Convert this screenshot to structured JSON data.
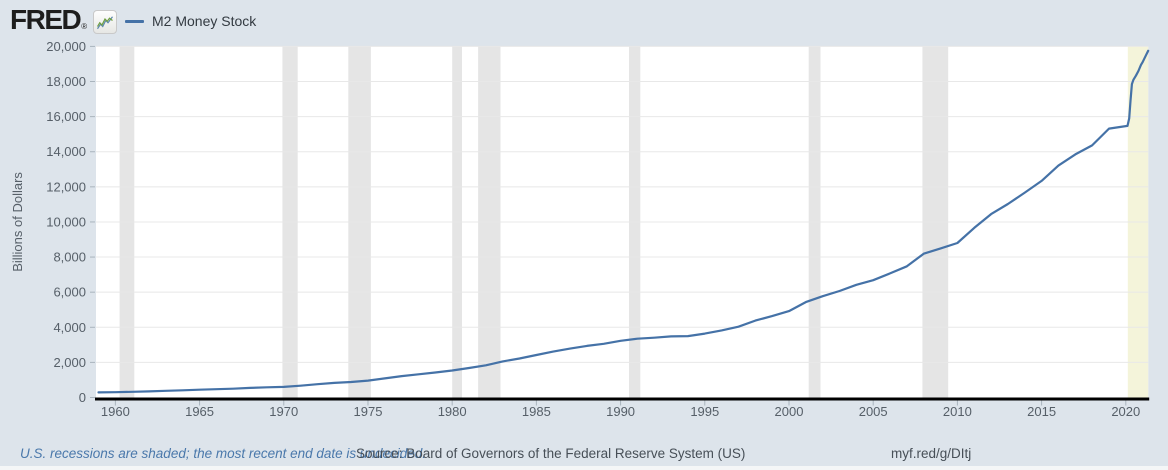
{
  "header": {
    "logo_text": "FRED",
    "registered_mark": "®",
    "legend": {
      "label": "M2 Money Stock"
    }
  },
  "footer": {
    "recession_note": "U.S. recessions are shaded; the most recent end date is undecided.",
    "source": "Source: Board of Governors of the Federal Reserve System (US)",
    "short_link": "myf.red/g/DItj"
  },
  "colors": {
    "page_background": "#dde4eb",
    "plot_background": "#ffffff",
    "line": "#4572a7",
    "recession_band": "#e5e5e5",
    "covid_band": "#f4f4da",
    "grid": "#e8e8e8",
    "tick": "#a9b4bd",
    "axis": "#000000",
    "axis_label": "#565f68"
  },
  "chart_data": {
    "type": "line",
    "title": "M2 Money Stock",
    "ylabel": "Billions of Dollars",
    "xlabel": "",
    "x_range": [
      1958.85,
      2021.33
    ],
    "y_range": [
      0,
      20000
    ],
    "grid": "horizontal",
    "legend_position": "top-left",
    "x_ticks": [
      {
        "year": 1960,
        "label": "1960"
      },
      {
        "year": 1965,
        "label": "1965"
      },
      {
        "year": 1970,
        "label": "1970"
      },
      {
        "year": 1975,
        "label": "1975"
      },
      {
        "year": 1980,
        "label": "1980"
      },
      {
        "year": 1985,
        "label": "1985"
      },
      {
        "year": 1990,
        "label": "1990"
      },
      {
        "year": 1995,
        "label": "1995"
      },
      {
        "year": 2000,
        "label": "2000"
      },
      {
        "year": 2005,
        "label": "2005"
      },
      {
        "year": 2010,
        "label": "2010"
      },
      {
        "year": 2015,
        "label": "2015"
      },
      {
        "year": 2020,
        "label": "2020"
      }
    ],
    "y_ticks": [
      {
        "value": 0,
        "label": "0"
      },
      {
        "value": 2000,
        "label": "2,000"
      },
      {
        "value": 4000,
        "label": "4,000"
      },
      {
        "value": 6000,
        "label": "6,000"
      },
      {
        "value": 8000,
        "label": "8,000"
      },
      {
        "value": 10000,
        "label": "10,000"
      },
      {
        "value": 12000,
        "label": "12,000"
      },
      {
        "value": 14000,
        "label": "14,000"
      },
      {
        "value": 16000,
        "label": "16,000"
      },
      {
        "value": 18000,
        "label": "18,000"
      },
      {
        "value": 20000,
        "label": "20,000"
      }
    ],
    "recession_bands": [
      [
        1960.25,
        1961.12
      ],
      [
        1969.92,
        1970.83
      ],
      [
        1973.83,
        1975.17
      ],
      [
        1980.0,
        1980.58
      ],
      [
        1981.54,
        1982.87
      ],
      [
        1990.5,
        1991.17
      ],
      [
        2001.17,
        2001.87
      ],
      [
        2007.92,
        2009.45
      ]
    ],
    "covid_band": {
      "start": 2020.12,
      "end": 2021.33
    },
    "series": [
      {
        "name": "M2 Money Stock",
        "color": "#4572a7",
        "points": [
          [
            1959,
            292
          ],
          [
            1960,
            304
          ],
          [
            1961,
            325
          ],
          [
            1962,
            350
          ],
          [
            1963,
            379
          ],
          [
            1964,
            409
          ],
          [
            1965,
            442
          ],
          [
            1966,
            471
          ],
          [
            1967,
            503
          ],
          [
            1968,
            545
          ],
          [
            1969,
            579
          ],
          [
            1970,
            601
          ],
          [
            1971,
            674
          ],
          [
            1972,
            758
          ],
          [
            1973,
            832
          ],
          [
            1974,
            881
          ],
          [
            1975,
            964
          ],
          [
            1976,
            1087
          ],
          [
            1977,
            1221
          ],
          [
            1978,
            1322
          ],
          [
            1979,
            1426
          ],
          [
            1980,
            1540
          ],
          [
            1981,
            1680
          ],
          [
            1982,
            1833
          ],
          [
            1983,
            2058
          ],
          [
            1984,
            2222
          ],
          [
            1985,
            2420
          ],
          [
            1986,
            2616
          ],
          [
            1987,
            2786
          ],
          [
            1988,
            2937
          ],
          [
            1989,
            3060
          ],
          [
            1990,
            3228
          ],
          [
            1991,
            3349
          ],
          [
            1992,
            3405
          ],
          [
            1993,
            3482
          ],
          [
            1994,
            3498
          ],
          [
            1995,
            3642
          ],
          [
            1996,
            3820
          ],
          [
            1997,
            4035
          ],
          [
            1998,
            4382
          ],
          [
            1999,
            4639
          ],
          [
            2000,
            4921
          ],
          [
            2001,
            5433
          ],
          [
            2002,
            5771
          ],
          [
            2003,
            6066
          ],
          [
            2004,
            6417
          ],
          [
            2005,
            6680
          ],
          [
            2006,
            7070
          ],
          [
            2007,
            7471
          ],
          [
            2008,
            8190
          ],
          [
            2009,
            8493
          ],
          [
            2010,
            8799
          ],
          [
            2011,
            9659
          ],
          [
            2012,
            10450
          ],
          [
            2013,
            11020
          ],
          [
            2014,
            11670
          ],
          [
            2015,
            12340
          ],
          [
            2016,
            13210
          ],
          [
            2017,
            13850
          ],
          [
            2018,
            14360
          ],
          [
            2019,
            15320
          ],
          [
            2020.1,
            15470
          ],
          [
            2020.2,
            15900
          ],
          [
            2020.28,
            16900
          ],
          [
            2020.36,
            17850
          ],
          [
            2020.45,
            18100
          ],
          [
            2020.6,
            18330
          ],
          [
            2020.75,
            18600
          ],
          [
            2020.9,
            18950
          ],
          [
            2021.0,
            19100
          ],
          [
            2021.1,
            19300
          ],
          [
            2021.2,
            19500
          ],
          [
            2021.33,
            19750
          ]
        ]
      }
    ]
  }
}
